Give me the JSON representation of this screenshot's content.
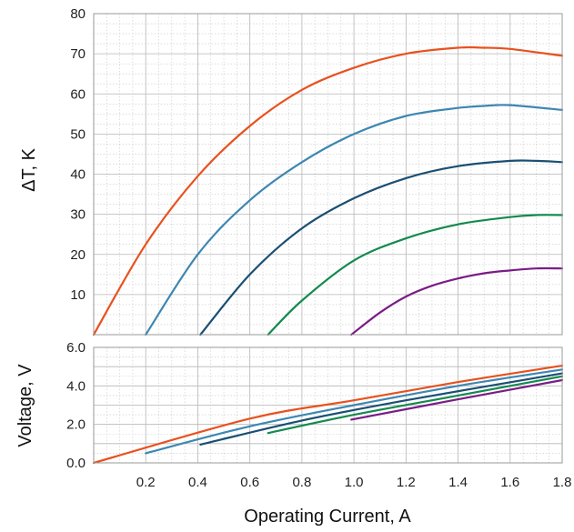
{
  "chart_data": [
    {
      "type": "line",
      "title": "",
      "xlabel": "",
      "ylabel": "ΔT, K",
      "xlim": [
        0,
        1.8
      ],
      "ylim": [
        0,
        80
      ],
      "y_ticks": [
        10,
        20,
        30,
        40,
        50,
        60,
        70,
        80
      ],
      "grid": true,
      "series": [
        {
          "color": "#e8511e",
          "x": [
            0.0,
            0.2,
            0.4,
            0.6,
            0.8,
            1.0,
            1.2,
            1.4,
            1.5,
            1.6,
            1.8
          ],
          "y": [
            0,
            22.5,
            39.5,
            52,
            61,
            66.5,
            70,
            71.5,
            71.5,
            71.2,
            69.5
          ]
        },
        {
          "color": "#3d87b1",
          "x": [
            0.2,
            0.4,
            0.6,
            0.8,
            1.0,
            1.2,
            1.4,
            1.5,
            1.6,
            1.8
          ],
          "y": [
            0,
            20,
            33.5,
            43,
            50,
            54.5,
            56.5,
            57,
            57.2,
            56
          ]
        },
        {
          "color": "#1a4f72",
          "x": [
            0.41,
            0.6,
            0.8,
            1.0,
            1.2,
            1.4,
            1.6,
            1.7,
            1.8
          ],
          "y": [
            0,
            15,
            26.5,
            34,
            39,
            42,
            43.3,
            43.3,
            43
          ]
        },
        {
          "color": "#138a4e",
          "x": [
            0.67,
            0.8,
            1.0,
            1.2,
            1.4,
            1.6,
            1.7,
            1.8
          ],
          "y": [
            0,
            8.5,
            18.5,
            24,
            27.5,
            29.3,
            29.8,
            29.8
          ]
        },
        {
          "color": "#7a1d85",
          "x": [
            0.99,
            1.1,
            1.2,
            1.3,
            1.4,
            1.5,
            1.6,
            1.7,
            1.8
          ],
          "y": [
            0,
            5.5,
            9.5,
            12.2,
            14,
            15.3,
            16,
            16.5,
            16.5
          ]
        }
      ]
    },
    {
      "type": "line",
      "title": "",
      "xlabel": "Operating Current, A",
      "ylabel": "Voltage, V",
      "xlim": [
        0,
        1.8
      ],
      "ylim": [
        0,
        6
      ],
      "x_ticks": [
        "0.2",
        "0.4",
        "0.6",
        "0.8",
        "1.0",
        "1.2",
        "1.4",
        "1.6",
        "1.8"
      ],
      "y_ticks": [
        "0.0",
        "2.0",
        "4.0",
        "6.0"
      ],
      "grid": true,
      "series": [
        {
          "color": "#e8511e",
          "x": [
            0.0,
            0.6,
            1.0,
            1.4,
            1.8
          ],
          "y": [
            0.0,
            2.3,
            3.25,
            4.2,
            5.05
          ]
        },
        {
          "color": "#3d87b1",
          "x": [
            0.2,
            0.6,
            1.0,
            1.4,
            1.8
          ],
          "y": [
            0.5,
            1.9,
            3.0,
            4.0,
            4.85
          ]
        },
        {
          "color": "#1a4f72",
          "x": [
            0.41,
            0.8,
            1.2,
            1.8
          ],
          "y": [
            0.95,
            2.2,
            3.25,
            4.65
          ]
        },
        {
          "color": "#138a4e",
          "x": [
            0.67,
            1.0,
            1.4,
            1.8
          ],
          "y": [
            1.55,
            2.5,
            3.5,
            4.5
          ]
        },
        {
          "color": "#7a1d85",
          "x": [
            0.99,
            1.4,
            1.8
          ],
          "y": [
            2.25,
            3.3,
            4.3
          ]
        }
      ]
    }
  ]
}
